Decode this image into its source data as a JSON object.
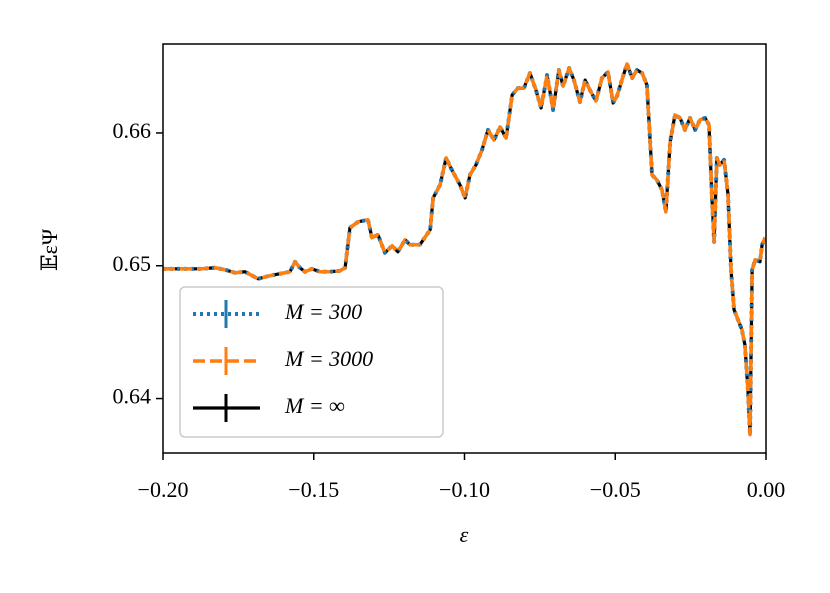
{
  "chart_data": {
    "type": "line",
    "xlabel": "ε",
    "ylabel": "𝔼εΨ",
    "xlim": [
      -0.2,
      0
    ],
    "ylim": [
      0.6359,
      0.6667
    ],
    "xticks": [
      {
        "value": -0.2,
        "label": "−0.20"
      },
      {
        "value": -0.15,
        "label": "−0.15"
      },
      {
        "value": -0.1,
        "label": "−0.10"
      },
      {
        "value": -0.05,
        "label": "−0.05"
      },
      {
        "value": 0,
        "label": "0.00"
      }
    ],
    "yticks": [
      0.64,
      0.65,
      0.66
    ],
    "legend": "lower left",
    "x": [
      -0.2,
      -0.1877,
      -0.1828,
      -0.1794,
      -0.1761,
      -0.1728,
      -0.1685,
      -0.1645,
      -0.1612,
      -0.1579,
      -0.1562,
      -0.1546,
      -0.1529,
      -0.1506,
      -0.1479,
      -0.1446,
      -0.1413,
      -0.1396,
      -0.138,
      -0.1353,
      -0.132,
      -0.1307,
      -0.1287,
      -0.1264,
      -0.124,
      -0.1221,
      -0.1197,
      -0.1181,
      -0.1148,
      -0.1114,
      -0.1104,
      -0.1081,
      -0.1061,
      -0.1042,
      -0.1015,
      -0.0998,
      -0.0982,
      -0.0962,
      -0.0942,
      -0.0922,
      -0.0902,
      -0.0882,
      -0.0862,
      -0.0842,
      -0.0823,
      -0.0803,
      -0.0783,
      -0.0763,
      -0.0746,
      -0.0726,
      -0.0706,
      -0.0687,
      -0.0673,
      -0.0653,
      -0.0637,
      -0.0617,
      -0.06,
      -0.0584,
      -0.0564,
      -0.0544,
      -0.0524,
      -0.0507,
      -0.0494,
      -0.0478,
      -0.0461,
      -0.0444,
      -0.0428,
      -0.0411,
      -0.0395,
      -0.0378,
      -0.0362,
      -0.0345,
      -0.0332,
      -0.0318,
      -0.0302,
      -0.0285,
      -0.0269,
      -0.0252,
      -0.0235,
      -0.0219,
      -0.0202,
      -0.0189,
      -0.0179,
      -0.0172,
      -0.0163,
      -0.0153,
      -0.0139,
      -0.0126,
      -0.0116,
      -0.0106,
      -0.0093,
      -0.008,
      -0.007,
      -0.006,
      -0.0053,
      -0.0046,
      -0.0036,
      -0.002,
      -0.0013,
      -0.0003
    ],
    "series": [
      {
        "name": "M = 300",
        "color": "#1f77b4",
        "style": "dotted",
        "values": [
          0.64977,
          0.64977,
          0.64985,
          0.6497,
          0.64947,
          0.64955,
          0.64902,
          0.64925,
          0.6494,
          0.64955,
          0.6503,
          0.64985,
          0.64955,
          0.64977,
          0.64955,
          0.64955,
          0.64962,
          0.64985,
          0.65286,
          0.65331,
          0.65346,
          0.65211,
          0.65233,
          0.65098,
          0.6515,
          0.65105,
          0.65195,
          0.65158,
          0.65158,
          0.65271,
          0.65511,
          0.65609,
          0.65812,
          0.65722,
          0.65609,
          0.65511,
          0.65684,
          0.6576,
          0.65872,
          0.66023,
          0.65947,
          0.66045,
          0.65962,
          0.66286,
          0.66338,
          0.66338,
          0.66451,
          0.66323,
          0.66188,
          0.66436,
          0.66173,
          0.66474,
          0.66353,
          0.66489,
          0.66398,
          0.66233,
          0.66398,
          0.66323,
          0.66241,
          0.66414,
          0.66459,
          0.66226,
          0.66278,
          0.66398,
          0.66519,
          0.66414,
          0.66474,
          0.66451,
          0.66361,
          0.65684,
          0.65647,
          0.65571,
          0.65406,
          0.65932,
          0.66135,
          0.66113,
          0.66023,
          0.66113,
          0.66023,
          0.66098,
          0.66113,
          0.6606,
          0.65496,
          0.6518,
          0.65812,
          0.6576,
          0.65797,
          0.65534,
          0.6497,
          0.64669,
          0.64594,
          0.64519,
          0.64406,
          0.64068,
          0.63729,
          0.6497,
          0.65045,
          0.6503,
          0.65158,
          0.65211
        ]
      },
      {
        "name": "M = 3000",
        "color": "#ff7f0e",
        "style": "dashed",
        "values": [
          0.64977,
          0.64977,
          0.64985,
          0.6497,
          0.64947,
          0.64955,
          0.64902,
          0.64925,
          0.6494,
          0.64955,
          0.6503,
          0.64985,
          0.64955,
          0.64977,
          0.64955,
          0.64955,
          0.64962,
          0.64985,
          0.65286,
          0.65331,
          0.65346,
          0.65211,
          0.65233,
          0.65098,
          0.6515,
          0.65105,
          0.65195,
          0.65158,
          0.65158,
          0.65271,
          0.65511,
          0.65609,
          0.65812,
          0.65722,
          0.65609,
          0.65511,
          0.65684,
          0.6576,
          0.65872,
          0.66023,
          0.65947,
          0.66045,
          0.65962,
          0.66286,
          0.66338,
          0.66338,
          0.66451,
          0.66323,
          0.66188,
          0.66436,
          0.66173,
          0.66474,
          0.66353,
          0.66489,
          0.66398,
          0.66233,
          0.66398,
          0.66323,
          0.66241,
          0.66414,
          0.66459,
          0.66226,
          0.66278,
          0.66398,
          0.66519,
          0.66414,
          0.66474,
          0.66451,
          0.66361,
          0.65684,
          0.65647,
          0.65571,
          0.65406,
          0.65932,
          0.66135,
          0.66113,
          0.66023,
          0.66113,
          0.66023,
          0.66098,
          0.66113,
          0.6606,
          0.65496,
          0.6518,
          0.65812,
          0.6576,
          0.65797,
          0.65534,
          0.6497,
          0.64669,
          0.64594,
          0.64519,
          0.64406,
          0.64068,
          0.63729,
          0.6497,
          0.65045,
          0.6503,
          0.65158,
          0.65211
        ]
      },
      {
        "name": "M = ∞",
        "color": "#000000",
        "style": "solid",
        "values": [
          0.64977,
          0.64977,
          0.64985,
          0.6497,
          0.64947,
          0.64955,
          0.64902,
          0.64925,
          0.6494,
          0.64955,
          0.6503,
          0.64985,
          0.64955,
          0.64977,
          0.64955,
          0.64955,
          0.64962,
          0.64985,
          0.65286,
          0.65331,
          0.65346,
          0.65211,
          0.65233,
          0.65098,
          0.6515,
          0.65105,
          0.65195,
          0.65158,
          0.65158,
          0.65271,
          0.65511,
          0.65609,
          0.65812,
          0.65722,
          0.65609,
          0.65511,
          0.65684,
          0.6576,
          0.65872,
          0.66023,
          0.65947,
          0.66045,
          0.65962,
          0.66286,
          0.66338,
          0.66338,
          0.66451,
          0.66323,
          0.66188,
          0.66436,
          0.66173,
          0.66474,
          0.66353,
          0.66489,
          0.66398,
          0.66233,
          0.66398,
          0.66323,
          0.66241,
          0.66414,
          0.66459,
          0.66226,
          0.66278,
          0.66398,
          0.66519,
          0.66414,
          0.66474,
          0.66451,
          0.66361,
          0.65684,
          0.65647,
          0.65571,
          0.65406,
          0.65932,
          0.66135,
          0.66113,
          0.66023,
          0.66113,
          0.66023,
          0.66098,
          0.66113,
          0.6606,
          0.65496,
          0.6518,
          0.65812,
          0.6576,
          0.65797,
          0.65534,
          0.6497,
          0.64669,
          0.64594,
          0.64519,
          0.64406,
          0.64068,
          0.63729,
          0.6497,
          0.65045,
          0.6503,
          0.65158,
          0.65211
        ]
      }
    ]
  }
}
